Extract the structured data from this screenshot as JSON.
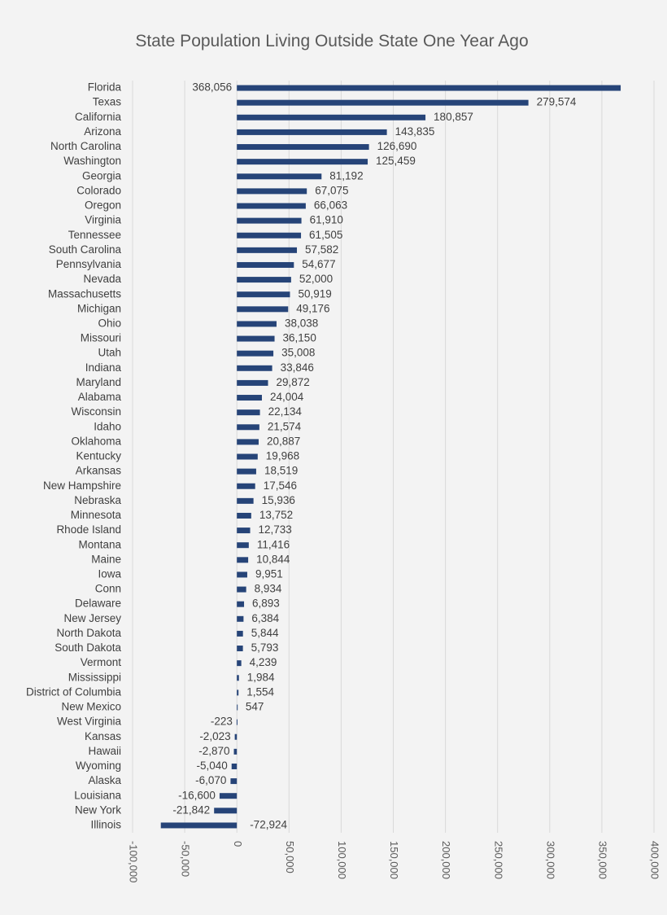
{
  "chart_data": {
    "type": "bar",
    "orientation": "horizontal",
    "title": "State Population Living Outside State One Year Ago",
    "xlabel": "",
    "ylabel": "",
    "xlim": [
      -100000,
      400000
    ],
    "x_ticks": [
      -100000,
      -50000,
      0,
      50000,
      100000,
      150000,
      200000,
      250000,
      300000,
      350000,
      400000
    ],
    "x_tick_labels": [
      "-100,000",
      "-50,000",
      "0",
      "50,000",
      "100,000",
      "150,000",
      "200,000",
      "250,000",
      "300,000",
      "350,000",
      "400,000"
    ],
    "grid": true,
    "legend": "none",
    "bar_color": "#264478",
    "categories": [
      "Florida",
      "Texas",
      "California",
      "Arizona",
      "North Carolina",
      "Washington",
      "Georgia",
      "Colorado",
      "Oregon",
      "Virginia",
      "Tennessee",
      "South Carolina",
      "Pennsylvania",
      "Nevada",
      "Massachusetts",
      "Michigan",
      "Ohio",
      "Missouri",
      "Utah",
      "Indiana",
      "Maryland",
      "Alabama",
      "Wisconsin",
      "Idaho",
      "Oklahoma",
      "Kentucky",
      "Arkansas",
      "New Hampshire",
      "Nebraska",
      "Minnesota",
      "Rhode Island",
      "Montana",
      "Maine",
      "Iowa",
      "Conn",
      "Delaware",
      "New Jersey",
      "North Dakota",
      "South Dakota",
      "Vermont",
      "Mississippi",
      "District of Columbia",
      "New Mexico",
      "West Virginia",
      "Kansas",
      "Hawaii",
      "Wyoming",
      "Alaska",
      "Louisiana",
      "New York",
      "Illinois"
    ],
    "values": [
      368056,
      279574,
      180857,
      143835,
      126690,
      125459,
      81192,
      67075,
      66063,
      61910,
      61505,
      57582,
      54677,
      52000,
      50919,
      49176,
      38038,
      36150,
      35008,
      33846,
      29872,
      24004,
      22134,
      21574,
      20887,
      19968,
      18519,
      17546,
      15936,
      13752,
      12733,
      11416,
      10844,
      9951,
      8934,
      6893,
      6384,
      5844,
      5793,
      4239,
      1984,
      1554,
      547,
      -223,
      -2023,
      -2870,
      -5040,
      -6070,
      -16600,
      -21842,
      -72924
    ],
    "value_labels": [
      "368,056",
      "279,574",
      "180,857",
      "143,835",
      "126,690",
      "125,459",
      "81,192",
      "67,075",
      "66,063",
      "61,910",
      "61,505",
      "57,582",
      "54,677",
      "52,000",
      "50,919",
      "49,176",
      "38,038",
      "36,150",
      "35,008",
      "33,846",
      "29,872",
      "24,004",
      "22,134",
      "21,574",
      "20,887",
      "19,968",
      "18,519",
      "17,546",
      "15,936",
      "13,752",
      "12,733",
      "11,416",
      "10,844",
      "9,951",
      "8,934",
      "6,893",
      "6,384",
      "5,844",
      "5,793",
      "4,239",
      "1,984",
      "1,554",
      "547",
      "-223",
      "-2,023",
      "-2,870",
      "-5,040",
      "-6,070",
      "-16,600",
      "-21,842",
      "-72,924"
    ]
  }
}
